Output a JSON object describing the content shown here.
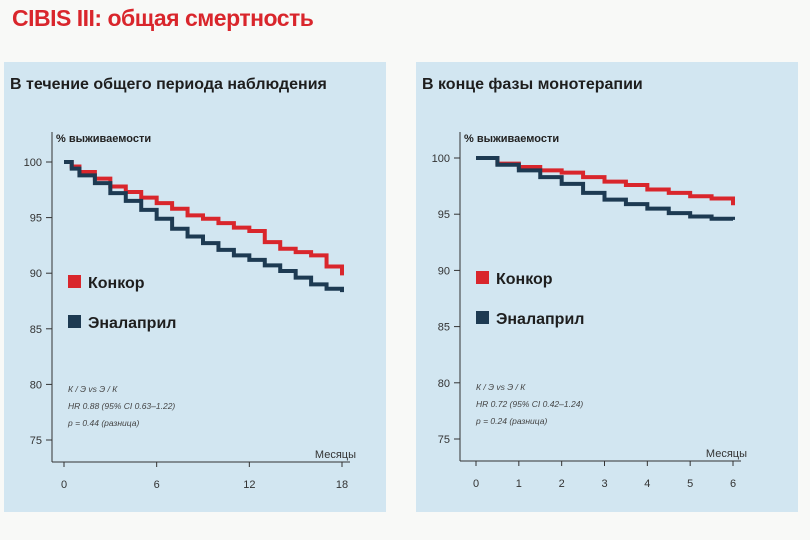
{
  "title": "CIBIS III: общая смертность",
  "chart_data": [
    {
      "type": "line",
      "title": "В течение общего периода наблюдения",
      "ylabel": "% выживаемости",
      "xlabel": "Месяцы",
      "xlim": [
        0,
        18
      ],
      "ylim": [
        75,
        100
      ],
      "xticks": [
        "0",
        "6",
        "12",
        "18"
      ],
      "yticks": [
        "75",
        "80",
        "85",
        "90",
        "95",
        "100"
      ],
      "legend_placement": "center-left",
      "series": [
        {
          "name": "Конкор",
          "color": "#d9262c",
          "points": [
            [
              0,
              100
            ],
            [
              0.5,
              99.6
            ],
            [
              1,
              99.1
            ],
            [
              2,
              98.5
            ],
            [
              3,
              97.8
            ],
            [
              4,
              97.3
            ],
            [
              5,
              96.8
            ],
            [
              6,
              96.3
            ],
            [
              7,
              95.8
            ],
            [
              8,
              95.2
            ],
            [
              9,
              94.9
            ],
            [
              10,
              94.5
            ],
            [
              11,
              94.1
            ],
            [
              12,
              93.8
            ],
            [
              13,
              92.8
            ],
            [
              14,
              92.2
            ],
            [
              15,
              91.9
            ],
            [
              16,
              91.6
            ],
            [
              17,
              90.6
            ],
            [
              18,
              89.8
            ]
          ]
        },
        {
          "name": "Эналаприл",
          "color": "#1d3a52",
          "points": [
            [
              0,
              100
            ],
            [
              0.5,
              99.4
            ],
            [
              1,
              98.8
            ],
            [
              2,
              98.1
            ],
            [
              3,
              97.2
            ],
            [
              4,
              96.5
            ],
            [
              5,
              95.7
            ],
            [
              6,
              94.9
            ],
            [
              7,
              94.0
            ],
            [
              8,
              93.3
            ],
            [
              9,
              92.7
            ],
            [
              10,
              92.1
            ],
            [
              11,
              91.6
            ],
            [
              12,
              91.2
            ],
            [
              13,
              90.7
            ],
            [
              14,
              90.2
            ],
            [
              15,
              89.6
            ],
            [
              16,
              89.0
            ],
            [
              17,
              88.6
            ],
            [
              18,
              88.3
            ]
          ]
        }
      ],
      "annotations": [
        "К / Э vs Э / К",
        "HR 0.88 (95% CI 0.63–1.22)",
        "p = 0.44 (разница)"
      ]
    },
    {
      "type": "line",
      "title": "В конце фазы монотерапии",
      "ylabel": "% выживаемости",
      "xlabel": "Месяцы",
      "xlim": [
        0,
        6
      ],
      "ylim": [
        75,
        100
      ],
      "xticks": [
        "0",
        "1",
        "2",
        "3",
        "4",
        "5",
        "6"
      ],
      "yticks": [
        "75",
        "80",
        "85",
        "90",
        "95",
        "100"
      ],
      "legend_placement": "center-left",
      "series": [
        {
          "name": "Конкор",
          "color": "#d9262c",
          "points": [
            [
              0,
              100
            ],
            [
              0.5,
              99.5
            ],
            [
              1,
              99.2
            ],
            [
              1.5,
              98.9
            ],
            [
              2,
              98.7
            ],
            [
              2.5,
              98.3
            ],
            [
              3,
              97.9
            ],
            [
              3.5,
              97.6
            ],
            [
              4,
              97.2
            ],
            [
              4.5,
              96.9
            ],
            [
              5,
              96.6
            ],
            [
              5.5,
              96.4
            ],
            [
              6,
              95.8
            ]
          ]
        },
        {
          "name": "Эналаприл",
          "color": "#1d3a52",
          "points": [
            [
              0,
              100
            ],
            [
              0.5,
              99.4
            ],
            [
              1,
              98.9
            ],
            [
              1.5,
              98.3
            ],
            [
              2,
              97.7
            ],
            [
              2.5,
              96.9
            ],
            [
              3,
              96.3
            ],
            [
              3.5,
              95.9
            ],
            [
              4,
              95.5
            ],
            [
              4.5,
              95.1
            ],
            [
              5,
              94.8
            ],
            [
              5.5,
              94.6
            ],
            [
              6,
              94.5
            ]
          ]
        }
      ],
      "annotations": [
        "К / Э vs Э / К",
        "HR 0.72 (95% CI 0.42–1.24)",
        "p = 0.24 (разница)"
      ]
    }
  ]
}
